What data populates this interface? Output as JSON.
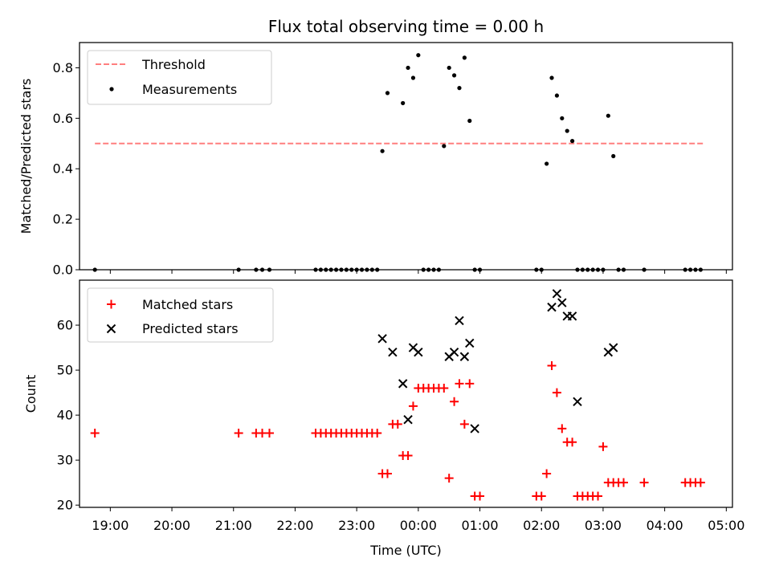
{
  "chart_data": [
    {
      "type": "scatter",
      "title": "Flux total observing time = 0.00 h",
      "xlabel": "",
      "ylabel": "Matched/Predicted stars",
      "xlim": [
        "18:30",
        "05:06"
      ],
      "ylim": [
        0,
        0.9
      ],
      "yticks": [
        "0.0",
        "0.2",
        "0.4",
        "0.6",
        "0.8"
      ],
      "legend_position": "upper-left",
      "threshold": {
        "name": "Threshold",
        "value": 0.5,
        "x_start": "18:45",
        "x_end": "04:38",
        "color": "#ff7f7f",
        "style": "dashed"
      },
      "series": [
        {
          "name": "Measurements",
          "marker": "dot",
          "color": "#000000",
          "x": [
            "18:45",
            "21:05",
            "21:22",
            "21:28",
            "21:35",
            "22:20",
            "22:25",
            "22:30",
            "22:35",
            "22:40",
            "22:45",
            "22:50",
            "22:55",
            "23:00",
            "23:05",
            "23:10",
            "23:15",
            "23:20",
            "23:25",
            "23:30",
            "23:45",
            "23:50",
            "23:55",
            "00:00",
            "00:05",
            "00:10",
            "00:15",
            "00:20",
            "00:25",
            "00:30",
            "00:35",
            "00:40",
            "00:45",
            "00:50",
            "00:55",
            "01:00",
            "01:55",
            "02:00",
            "02:05",
            "02:10",
            "02:15",
            "02:20",
            "02:25",
            "02:30",
            "02:35",
            "02:40",
            "02:45",
            "02:50",
            "02:55",
            "03:00",
            "03:05",
            "03:10",
            "03:15",
            "03:20",
            "03:40",
            "04:20",
            "04:25",
            "04:30",
            "04:35"
          ],
          "y": [
            0,
            0,
            0,
            0,
            0,
            0,
            0,
            0,
            0,
            0,
            0,
            0,
            0,
            0,
            0,
            0,
            0,
            0,
            0.47,
            0.7,
            0.66,
            0.8,
            0.76,
            0.85,
            0,
            0,
            0,
            0,
            0.49,
            0.8,
            0.77,
            0.72,
            0.84,
            0.59,
            0,
            0,
            0,
            0,
            0.42,
            0.76,
            0.69,
            0.6,
            0.55,
            0.51,
            0,
            0,
            0,
            0,
            0,
            0,
            0.61,
            0.45,
            0,
            0,
            0,
            0,
            0,
            0,
            0
          ]
        }
      ]
    },
    {
      "type": "scatter",
      "title": "",
      "xlabel": "Time (UTC)",
      "ylabel": "Count",
      "xlim": [
        "18:30",
        "05:06"
      ],
      "ylim": [
        19.5,
        70
      ],
      "yticks": [
        "20",
        "30",
        "40",
        "50",
        "60"
      ],
      "xticks": [
        "19:00",
        "20:00",
        "21:00",
        "22:00",
        "23:00",
        "00:00",
        "01:00",
        "02:00",
        "03:00",
        "04:00",
        "05:00"
      ],
      "legend_position": "upper-left",
      "series": [
        {
          "name": "Matched stars",
          "marker": "plus",
          "color": "#ff0000",
          "x": [
            "18:45",
            "21:05",
            "21:22",
            "21:28",
            "21:35",
            "22:20",
            "22:25",
            "22:30",
            "22:35",
            "22:40",
            "22:45",
            "22:50",
            "22:55",
            "23:00",
            "23:05",
            "23:10",
            "23:15",
            "23:20",
            "23:25",
            "23:30",
            "23:35",
            "23:40",
            "23:45",
            "23:50",
            "23:55",
            "00:00",
            "00:05",
            "00:10",
            "00:15",
            "00:20",
            "00:25",
            "00:30",
            "00:35",
            "00:40",
            "00:45",
            "00:50",
            "00:55",
            "01:00",
            "01:55",
            "02:00",
            "02:05",
            "02:10",
            "02:15",
            "02:20",
            "02:25",
            "02:30",
            "02:35",
            "02:40",
            "02:45",
            "02:50",
            "02:55",
            "03:00",
            "03:05",
            "03:10",
            "03:15",
            "03:20",
            "03:40",
            "04:20",
            "04:25",
            "04:30",
            "04:35"
          ],
          "y": [
            36,
            36,
            36,
            36,
            36,
            36,
            36,
            36,
            36,
            36,
            36,
            36,
            36,
            36,
            36,
            36,
            36,
            36,
            27,
            27,
            38,
            38,
            31,
            31,
            42,
            46,
            46,
            46,
            46,
            46,
            46,
            26,
            43,
            47,
            38,
            47,
            22,
            22,
            22,
            22,
            27,
            51,
            45,
            37,
            34,
            34,
            22,
            22,
            22,
            22,
            22,
            33,
            25,
            25,
            25,
            25,
            25,
            25,
            25,
            25,
            25
          ]
        },
        {
          "name": "Predicted stars",
          "marker": "x",
          "color": "#000000",
          "x": [
            "23:25",
            "23:35",
            "23:45",
            "23:50",
            "23:55",
            "00:00",
            "00:30",
            "00:35",
            "00:40",
            "00:45",
            "00:50",
            "00:55",
            "02:10",
            "02:15",
            "02:20",
            "02:25",
            "02:30",
            "02:35",
            "03:05",
            "03:10"
          ],
          "y": [
            57,
            54,
            47,
            39,
            55,
            54,
            53,
            54,
            61,
            53,
            56,
            37,
            64,
            67,
            65,
            62,
            62,
            43,
            54,
            55
          ]
        }
      ]
    }
  ]
}
